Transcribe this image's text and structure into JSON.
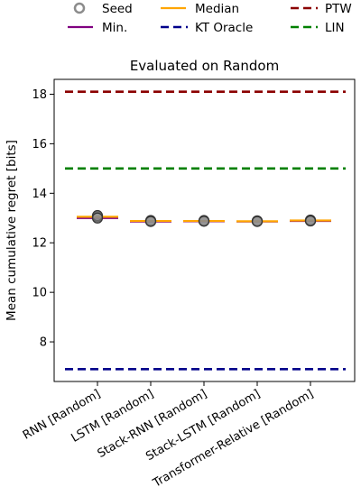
{
  "chart_data": {
    "type": "scatter",
    "title": "Evaluated on Random",
    "ylabel": "Mean cumulative regret [bits]",
    "xlabel": "",
    "ylim": [
      6.4,
      18.6
    ],
    "yticks": [
      8,
      10,
      12,
      14,
      16,
      18
    ],
    "categories": [
      "RNN [Random]",
      "LSTM [Random]",
      "Stack-RNN [Random]",
      "Stack-LSTM [Random]",
      "Transformer-Relative [Random]"
    ],
    "series": [
      {
        "name": "Seed",
        "kind": "points",
        "color": "#8c8c8c",
        "edge": "#333333",
        "values": [
          [
            13.05,
            13.1,
            13.0
          ],
          [
            12.88,
            12.9,
            12.86
          ],
          [
            12.88,
            12.9,
            12.87
          ],
          [
            12.87,
            12.89,
            12.86
          ],
          [
            12.9,
            12.92,
            12.88
          ]
        ]
      },
      {
        "name": "Min.",
        "kind": "segment",
        "color": "#800080",
        "values": [
          13.0,
          12.86,
          12.87,
          12.86,
          12.88
        ]
      },
      {
        "name": "Median",
        "kind": "segment",
        "color": "#ffa500",
        "values": [
          13.05,
          12.88,
          12.88,
          12.87,
          12.9
        ]
      },
      {
        "name": "KT Oracle",
        "kind": "hline",
        "color": "#00008b",
        "value": 6.9
      },
      {
        "name": "PTW",
        "kind": "hline",
        "color": "#8b0000",
        "value": 18.1
      },
      {
        "name": "LIN",
        "kind": "hline",
        "color": "#008000",
        "value": 15.0
      }
    ],
    "grid": false,
    "legend_position": "top"
  }
}
